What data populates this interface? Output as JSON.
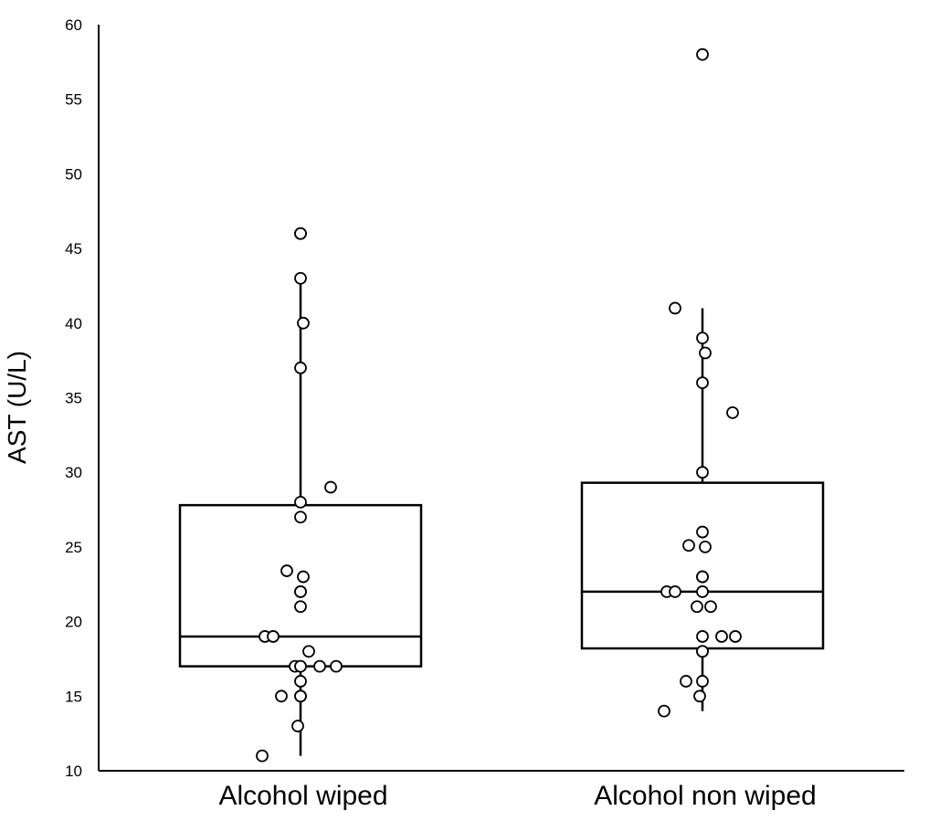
{
  "chart_data": {
    "type": "box",
    "title": "",
    "xlabel": "",
    "ylabel": "AST (U/L)",
    "ylim": [
      10,
      60
    ],
    "yticks": [
      10,
      15,
      20,
      25,
      30,
      35,
      40,
      45,
      50,
      55,
      60
    ],
    "grid": false,
    "categories": [
      "Alcohol wiped",
      "Alcohol non wiped"
    ],
    "boxes": [
      {
        "category": "Alcohol wiped",
        "whisker_low": 11,
        "q1": 17,
        "median": 19,
        "q3": 27.8,
        "whisker_high": 43
      },
      {
        "category": "Alcohol non wiped",
        "whisker_low": 14,
        "q1": 18.2,
        "median": 22,
        "q3": 29.3,
        "whisker_high": 41
      }
    ],
    "points": [
      {
        "category": "Alcohol wiped",
        "values": [
          46,
          46,
          43,
          40,
          37,
          29,
          28,
          27,
          23.4,
          23,
          22,
          22,
          21,
          19,
          19,
          18,
          17,
          17,
          17,
          17,
          16,
          15,
          15,
          15,
          13,
          11
        ],
        "jitter": [
          0,
          0,
          0,
          0.01,
          0,
          0.11,
          0,
          0,
          -0.05,
          0.01,
          0,
          0,
          0,
          -0.13,
          -0.1,
          0.03,
          -0.02,
          0,
          0.07,
          0.13,
          0,
          -0.07,
          0,
          0,
          -0.01,
          -0.14
        ]
      },
      {
        "category": "Alcohol non wiped",
        "values": [
          58,
          41,
          39,
          38,
          36,
          34,
          30,
          26,
          25.1,
          25,
          23,
          23,
          22,
          22,
          22,
          21,
          21,
          19,
          19,
          19,
          18,
          18,
          16,
          16,
          15,
          14
        ],
        "jitter": [
          0,
          -0.1,
          0,
          0.01,
          0,
          0.11,
          0,
          0,
          -0.05,
          0.01,
          0,
          0,
          -0.13,
          -0.1,
          0,
          -0.02,
          0.03,
          0,
          0.07,
          0.12,
          0,
          0,
          -0.06,
          0,
          -0.01,
          -0.14
        ]
      }
    ]
  }
}
